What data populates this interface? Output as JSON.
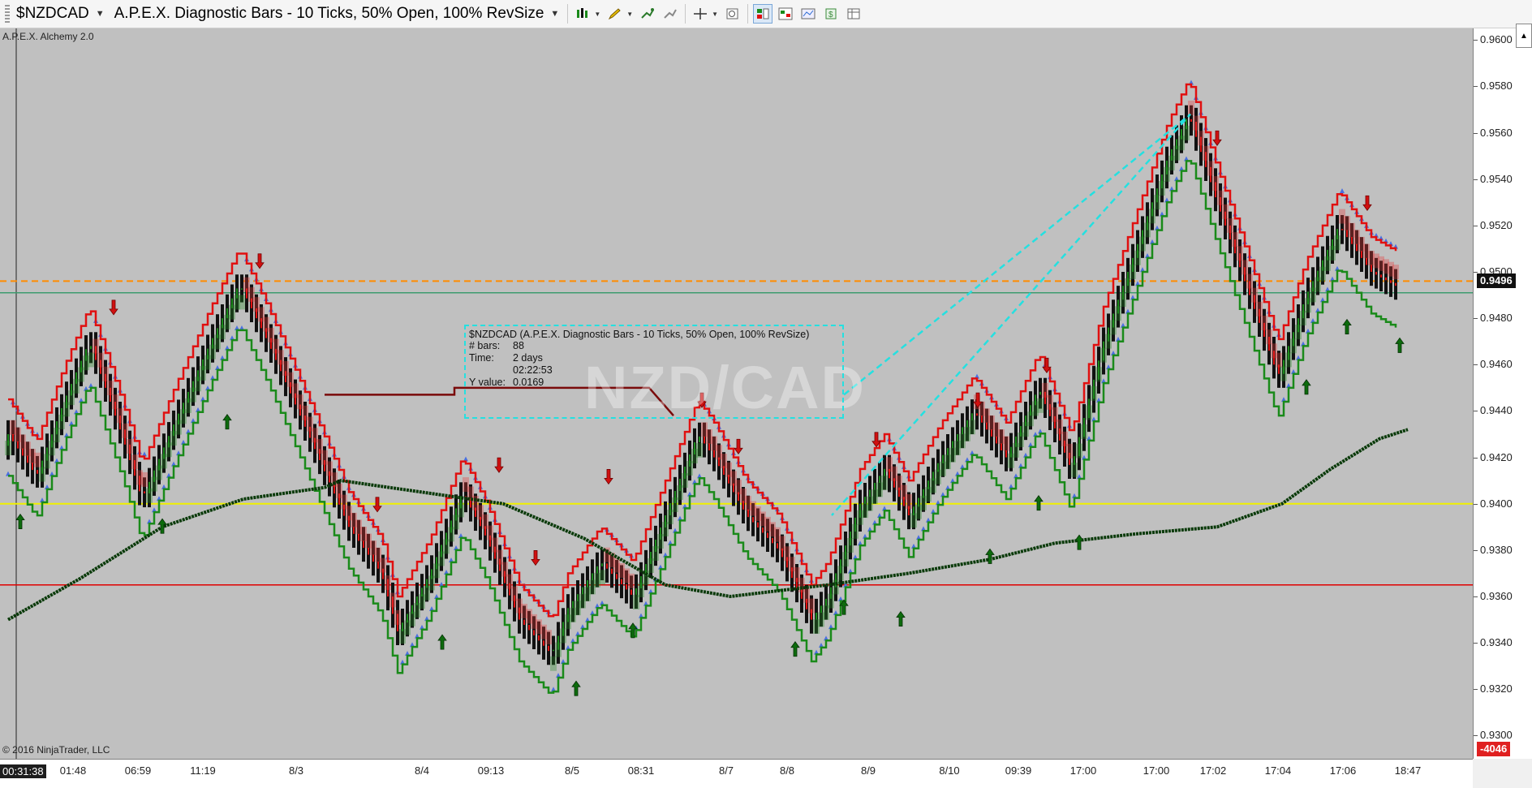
{
  "toolbar": {
    "instrument": "$NZDCAD",
    "bar_type": "A.P.E.X. Diagnostic Bars - 10 Ticks, 50% Open, 100% RevSize",
    "icons": [
      "bar-style-icon",
      "draw-pencil-icon",
      "add-indicator-icon",
      "strategy-icon",
      "crosshair-icon",
      "zoom-icon",
      "data-box-icon",
      "chart-trader-icon",
      "properties-icon",
      "snapshot-icon",
      "grid-icon"
    ]
  },
  "chart": {
    "indicator_label": "A.P.E.X. Alchemy 2.0",
    "watermark": "NZD/CAD",
    "copyright": "© 2016 NinjaTrader, LLC",
    "info_box": {
      "title": "$NZDCAD (A.P.E.X. Diagnostic Bars - 10 Ticks, 50% Open, 100% RevSize)",
      "bars_label": "# bars:",
      "bars_value": "88",
      "time_label": "Time:",
      "time_value_1": "2 days",
      "time_value_2": "02:22:53",
      "y_label": "Y value:",
      "y_value": "0.0169"
    },
    "colors": {
      "background": "#c0c0c0",
      "bull": "#1a8a1a",
      "bear": "#e01010",
      "orange_line": "#ff8c00",
      "yellow_line": "#f0f000",
      "red_line": "#e00000",
      "green_line": "#3e9c6f",
      "ma_line": "#0a3a0a",
      "dots": "#4a6fe0",
      "cyan": "#25e0e0"
    }
  },
  "price_axis": {
    "ticks": [
      "0.9600",
      "0.9580",
      "0.9560",
      "0.9540",
      "0.9520",
      "0.9500",
      "0.9480",
      "0.9460",
      "0.9440",
      "0.9420",
      "0.9400",
      "0.9380",
      "0.9360",
      "0.9340",
      "0.9320",
      "0.9300"
    ],
    "last_price": "0.9496",
    "bottom_label": "-4046"
  },
  "time_axis": {
    "labels": [
      "00:31:38",
      "01:48",
      "06:59",
      "11:19",
      "8/3",
      "8/4",
      "09:13",
      "8/5",
      "08:31",
      "8/7",
      "8/8",
      "8/9",
      "8/10",
      "09:39",
      "17:00",
      "17:00",
      "17:02",
      "17:04",
      "17:06",
      "18:47"
    ]
  },
  "chart_data": {
    "type": "bar",
    "title": "",
    "ylim": [
      0.929,
      0.9605
    ],
    "horizontal_lines": [
      {
        "name": "orange",
        "value": 0.9496
      },
      {
        "name": "green",
        "value": 0.9491
      },
      {
        "name": "yellow",
        "value": 0.94
      },
      {
        "name": "red",
        "value": 0.9365
      }
    ],
    "price_path": [
      [
        0,
        0.942
      ],
      [
        10,
        0.943
      ],
      [
        45,
        0.9412
      ],
      [
        80,
        0.9445
      ],
      [
        110,
        0.947
      ],
      [
        150,
        0.943
      ],
      [
        175,
        0.9402
      ],
      [
        215,
        0.9435
      ],
      [
        260,
        0.947
      ],
      [
        295,
        0.9495
      ],
      [
        330,
        0.947
      ],
      [
        380,
        0.943
      ],
      [
        430,
        0.939
      ],
      [
        470,
        0.937
      ],
      [
        490,
        0.9345
      ],
      [
        530,
        0.937
      ],
      [
        570,
        0.9405
      ],
      [
        600,
        0.9385
      ],
      [
        640,
        0.935
      ],
      [
        680,
        0.9335
      ],
      [
        700,
        0.9355
      ],
      [
        740,
        0.9375
      ],
      [
        780,
        0.936
      ],
      [
        820,
        0.9395
      ],
      [
        860,
        0.943
      ],
      [
        880,
        0.942
      ],
      [
        920,
        0.9395
      ],
      [
        960,
        0.938
      ],
      [
        1000,
        0.935
      ],
      [
        1020,
        0.936
      ],
      [
        1060,
        0.94
      ],
      [
        1090,
        0.9415
      ],
      [
        1120,
        0.9395
      ],
      [
        1160,
        0.942
      ],
      [
        1200,
        0.944
      ],
      [
        1240,
        0.942
      ],
      [
        1280,
        0.945
      ],
      [
        1320,
        0.9415
      ],
      [
        1360,
        0.947
      ],
      [
        1400,
        0.951
      ],
      [
        1440,
        0.955
      ],
      [
        1465,
        0.9568
      ],
      [
        1500,
        0.953
      ],
      [
        1540,
        0.949
      ],
      [
        1575,
        0.9455
      ],
      [
        1610,
        0.949
      ],
      [
        1650,
        0.952
      ],
      [
        1690,
        0.95
      ],
      [
        1720,
        0.9494
      ]
    ],
    "ma_path": [
      [
        10,
        0.935
      ],
      [
        100,
        0.9368
      ],
      [
        200,
        0.939
      ],
      [
        300,
        0.9402
      ],
      [
        400,
        0.9407
      ],
      [
        420,
        0.941
      ],
      [
        520,
        0.9405
      ],
      [
        620,
        0.94
      ],
      [
        720,
        0.9385
      ],
      [
        820,
        0.9365
      ],
      [
        900,
        0.936
      ],
      [
        1020,
        0.9365
      ],
      [
        1120,
        0.937
      ],
      [
        1220,
        0.9376
      ],
      [
        1300,
        0.9383
      ],
      [
        1400,
        0.9387
      ],
      [
        1500,
        0.939
      ],
      [
        1580,
        0.94
      ],
      [
        1640,
        0.9415
      ],
      [
        1700,
        0.9428
      ],
      [
        1735,
        0.9432
      ]
    ],
    "up_arrows": [
      [
        25,
        0.9392
      ],
      [
        200,
        0.939
      ],
      [
        280,
        0.9435
      ],
      [
        545,
        0.934
      ],
      [
        710,
        0.932
      ],
      [
        780,
        0.9345
      ],
      [
        980,
        0.9337
      ],
      [
        1040,
        0.9355
      ],
      [
        1110,
        0.935
      ],
      [
        1220,
        0.9377
      ],
      [
        1280,
        0.94
      ],
      [
        1330,
        0.9383
      ],
      [
        1610,
        0.945
      ],
      [
        1660,
        0.9476
      ],
      [
        1725,
        0.9468
      ]
    ],
    "down_arrows": [
      [
        140,
        0.9485
      ],
      [
        320,
        0.9505
      ],
      [
        465,
        0.94
      ],
      [
        615,
        0.9417
      ],
      [
        660,
        0.9377
      ],
      [
        750,
        0.9412
      ],
      [
        865,
        0.9445
      ],
      [
        910,
        0.9425
      ],
      [
        1080,
        0.9428
      ],
      [
        1205,
        0.9445
      ],
      [
        1290,
        0.946
      ],
      [
        1500,
        0.9558
      ],
      [
        1685,
        0.953
      ]
    ]
  }
}
